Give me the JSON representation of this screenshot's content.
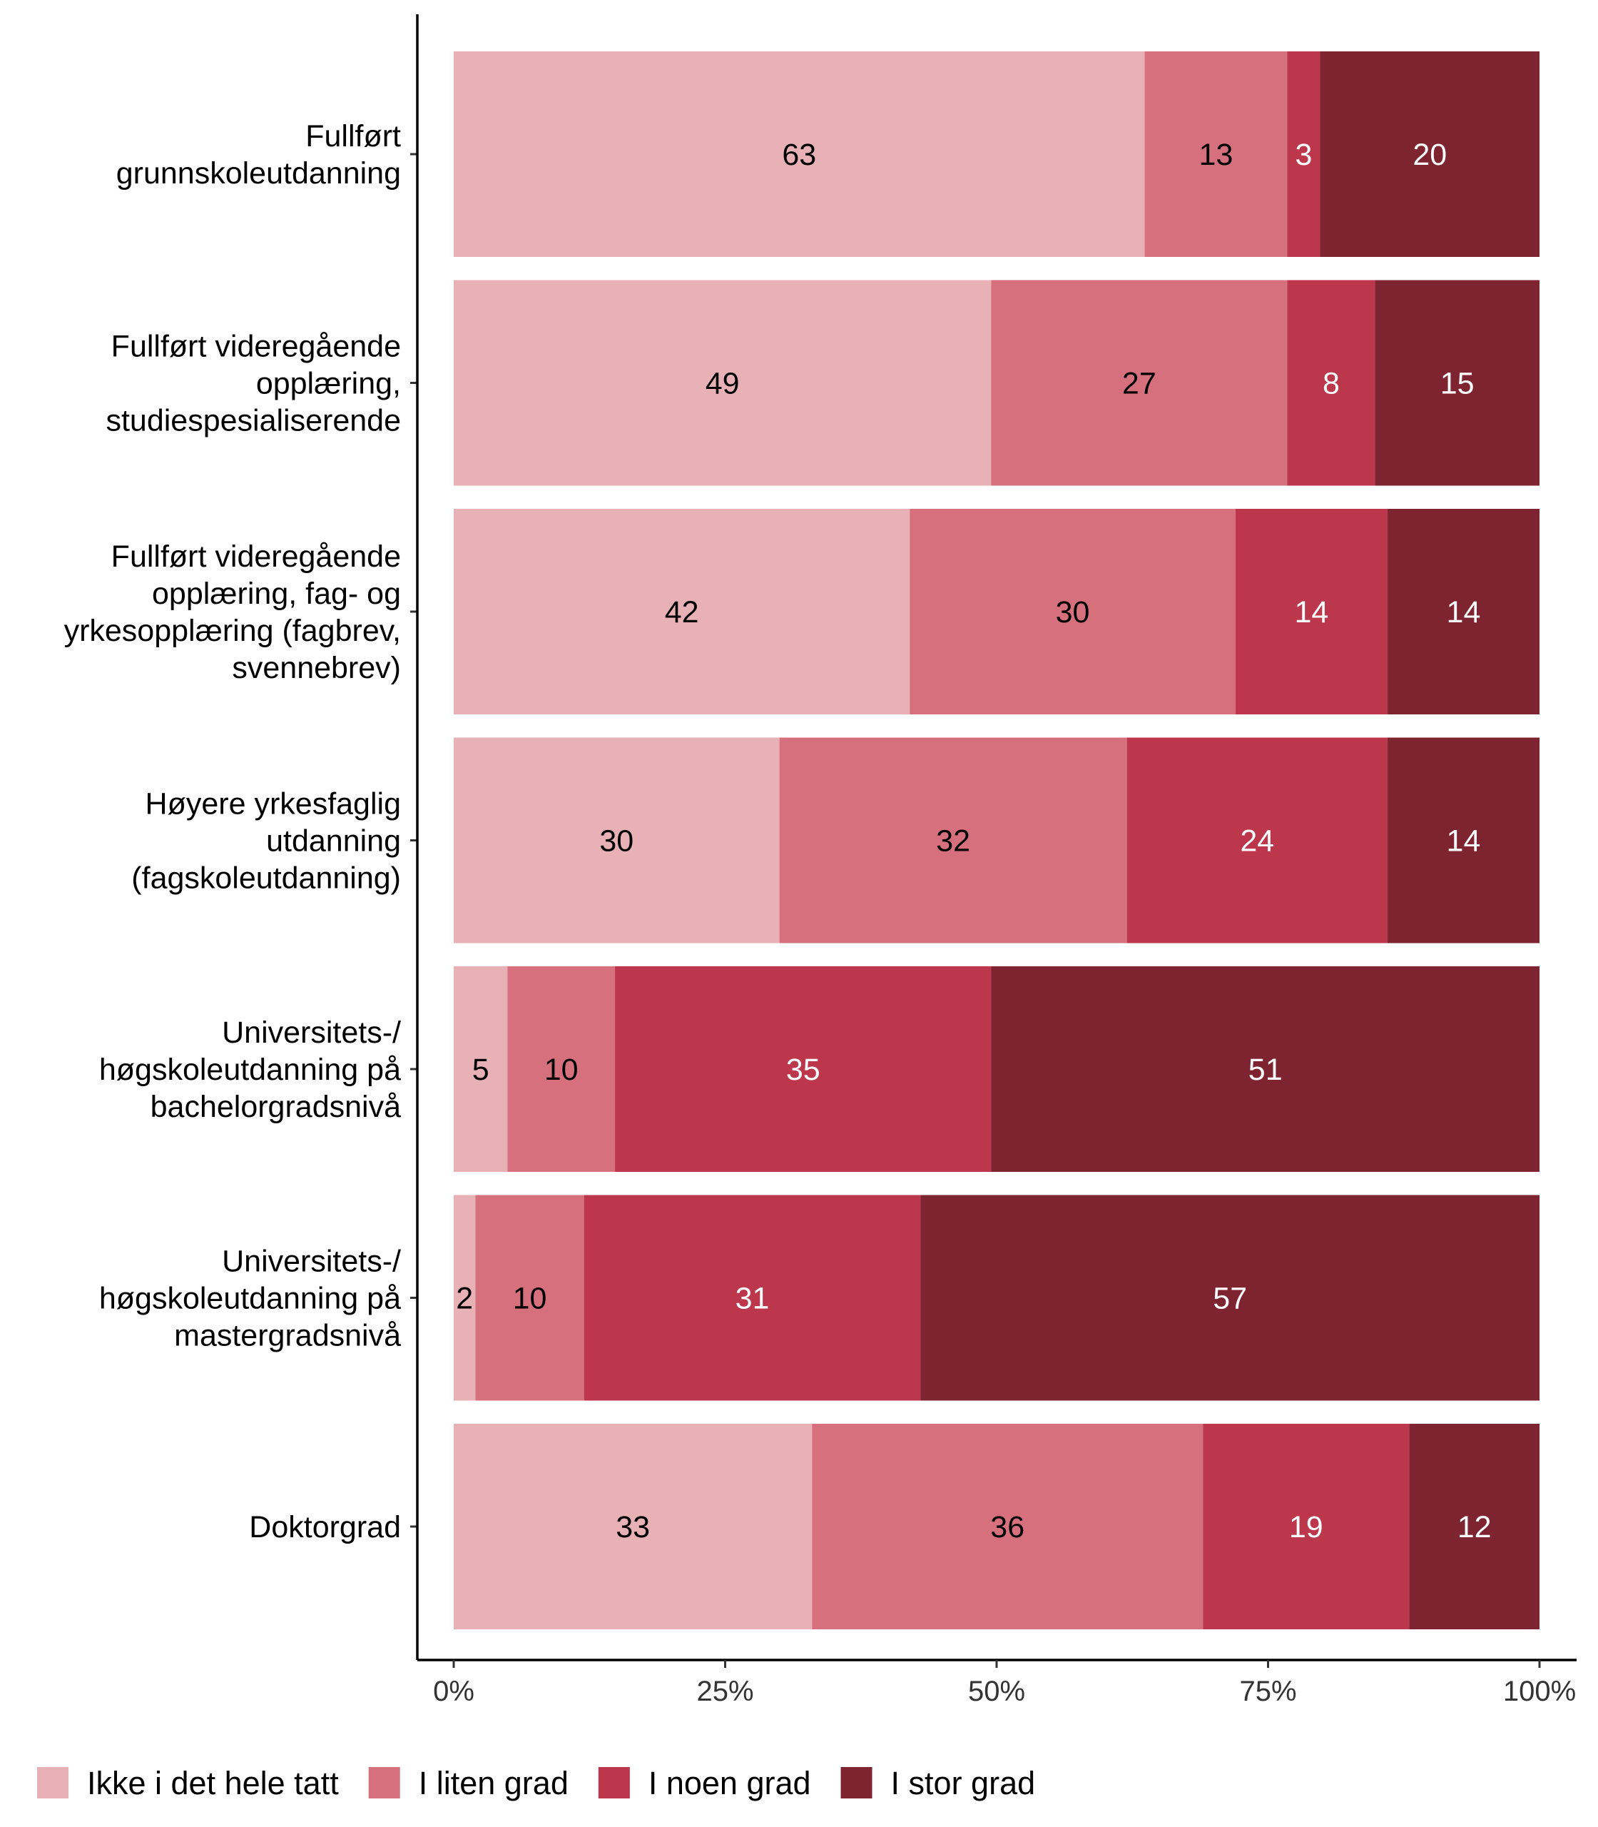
{
  "chart_data": {
    "type": "bar",
    "orientation": "horizontal",
    "stacked": true,
    "percent": true,
    "categories": [
      [
        "Fullført",
        "grunnskoleutdanning"
      ],
      [
        "Fullført videregående",
        "opplæring,",
        "studiespesialiserende"
      ],
      [
        "Fullført videregående",
        "opplæring, fag- og",
        "yrkesopplæring (fagbrev,",
        "svennebrev)"
      ],
      [
        "Høyere yrkesfaglig",
        "utdanning",
        "(fagskoleutdanning)"
      ],
      [
        "Universitets-/",
        "høgskoleutdanning på",
        "bachelorgradsnivå"
      ],
      [
        "Universitets-/",
        "høgskoleutdanning på",
        "mastergradsnivå"
      ],
      [
        "Doktorgrad"
      ]
    ],
    "series": [
      {
        "name": "Ikke i det hele tatt",
        "color": "#E8B1B6",
        "label_color": "#000000",
        "values": [
          63,
          49,
          42,
          30,
          5,
          2,
          33
        ]
      },
      {
        "name": "I liten grad",
        "color": "#D6707C",
        "label_color": "#000000",
        "values": [
          13,
          27,
          30,
          32,
          10,
          10,
          36
        ]
      },
      {
        "name": "I noen grad",
        "color": "#BC374B",
        "label_color": "#FFFFFF",
        "values": [
          3,
          8,
          14,
          24,
          35,
          31,
          19
        ]
      },
      {
        "name": "I stor grad",
        "color": "#7D2430",
        "label_color": "#FFFFFF",
        "values": [
          20,
          15,
          14,
          14,
          51,
          57,
          12
        ]
      }
    ],
    "xticks": [
      "0%",
      "25%",
      "50%",
      "75%",
      "100%"
    ],
    "xlim": [
      0,
      100
    ],
    "title": "",
    "xlabel": "",
    "ylabel": "",
    "grid": false,
    "legend_position": "bottom"
  }
}
